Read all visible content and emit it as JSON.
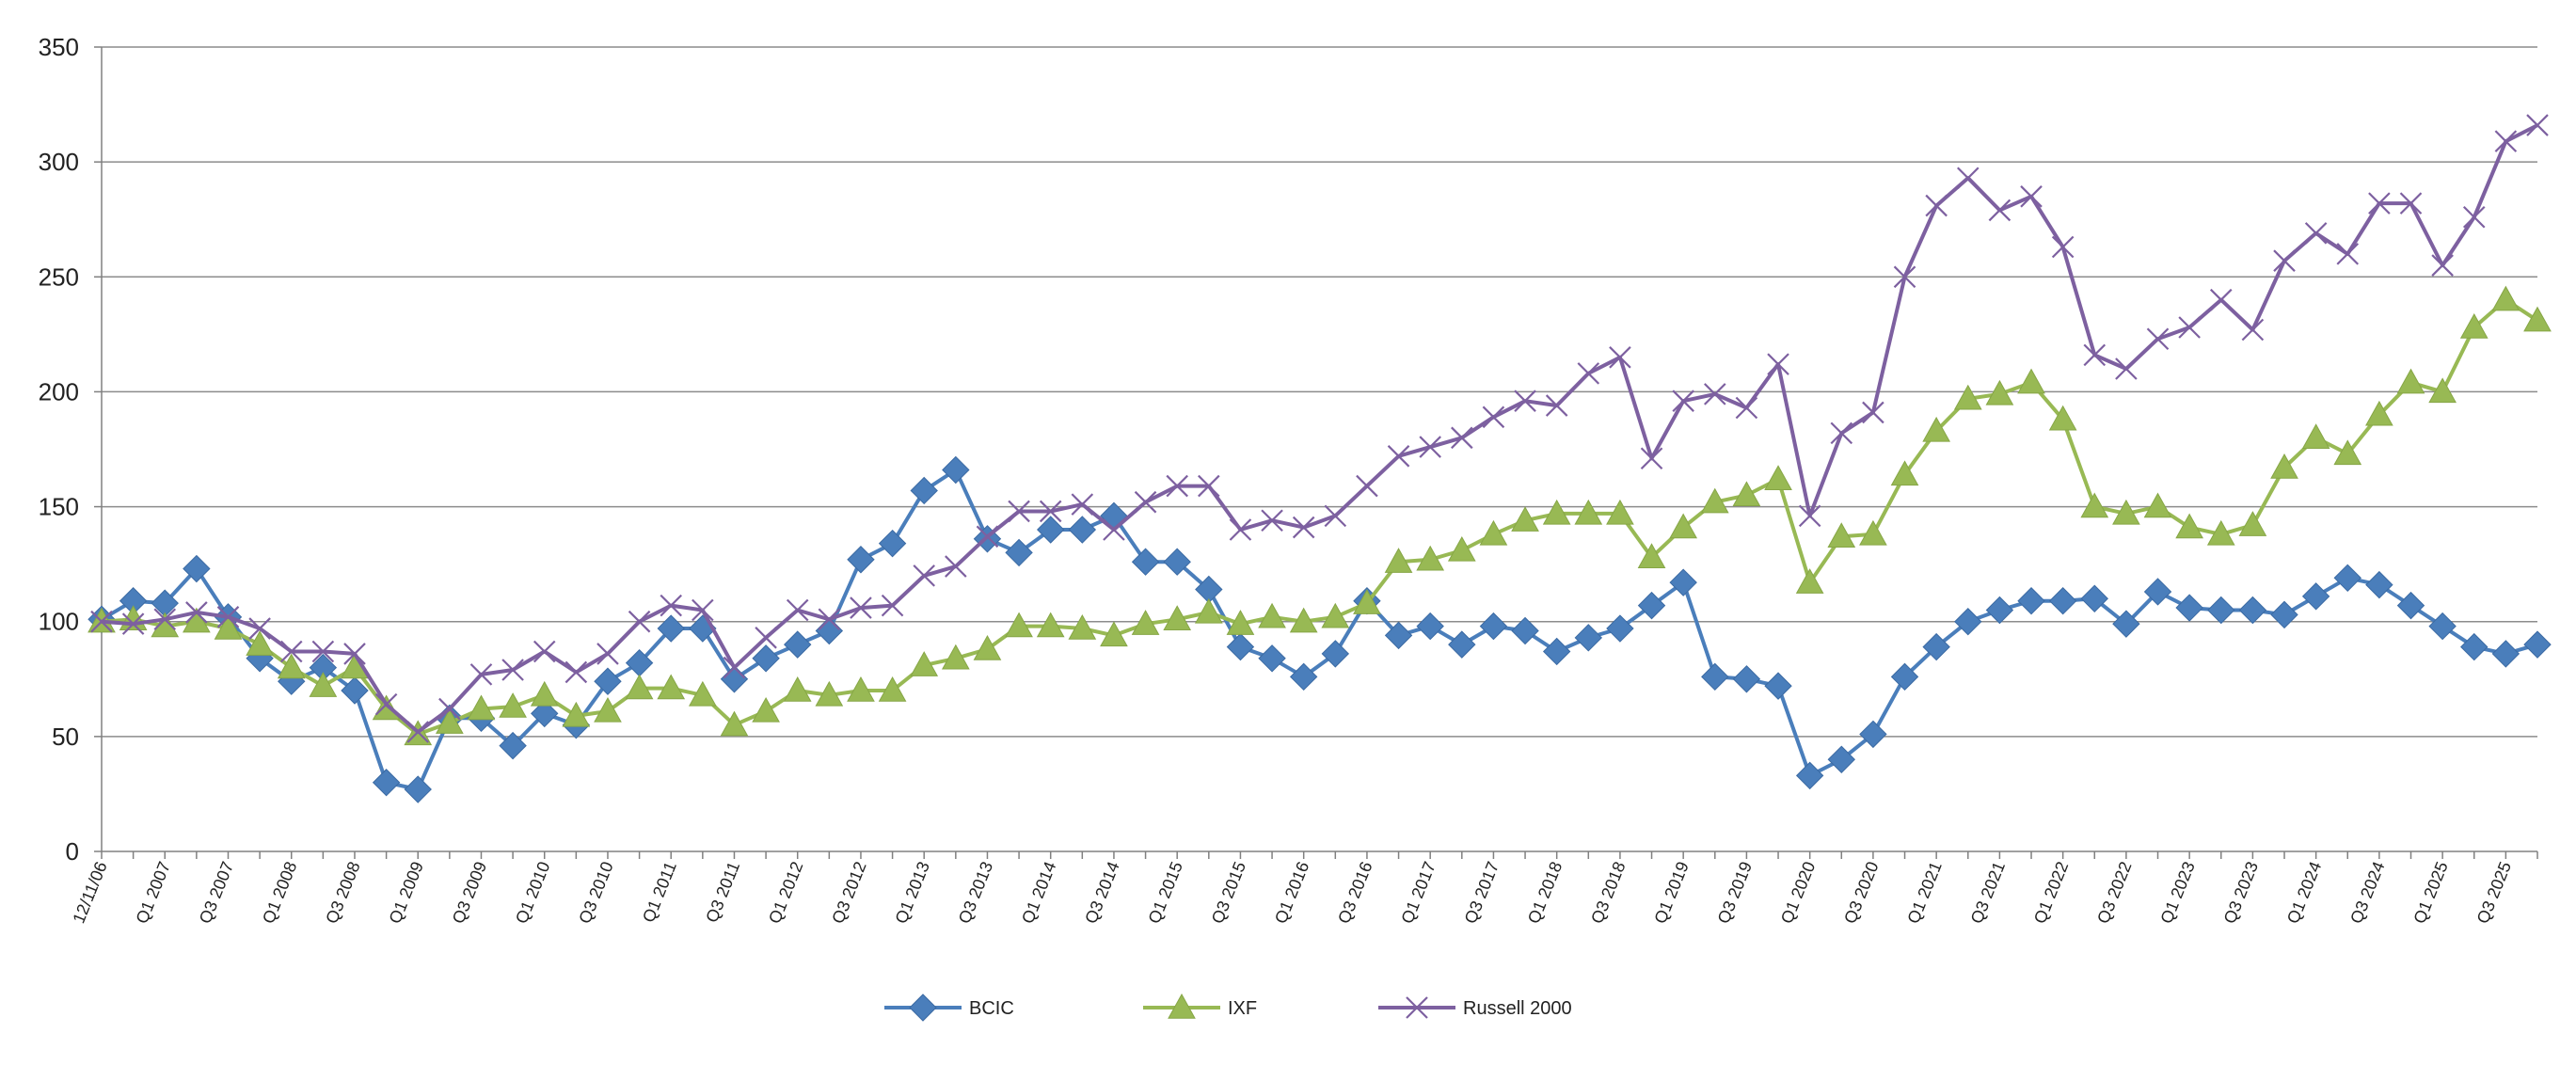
{
  "chart_data": {
    "type": "line",
    "title": "",
    "xlabel": "",
    "ylabel": "",
    "ylim": [
      0,
      350
    ],
    "yticks": [
      0,
      50,
      100,
      150,
      200,
      250,
      300,
      350
    ],
    "grid": true,
    "legend_position": "bottom-center",
    "x_tick_labels": [
      "12/11/06",
      "Q1 2007",
      "Q3 2007",
      "Q1 2008",
      "Q3 2008",
      "Q1 2009",
      "Q3 2009",
      "Q1 2010",
      "Q3 2010",
      "Q1 2011",
      "Q3 2011",
      "Q1 2012",
      "Q3 2012",
      "Q1 2013",
      "Q3 2013",
      "Q1 2014",
      "Q3 2014",
      "Q1 2015",
      "Q3 2015",
      "Q1 2016",
      "Q3 2016",
      "Q1 2017",
      "Q3 2017",
      "Q1 2018",
      "Q3 2018",
      "Q1 2019",
      "Q3 2019",
      "Q1 2020",
      "Q3 2020",
      "Q1 2021",
      "Q3 2021",
      "Q1 2022",
      "Q3 2022",
      "Q1 2023",
      "Q3 2023",
      "Q1 2024",
      "Q3 2024",
      "Q1 2025",
      "Q3 2025"
    ],
    "n_points": 78,
    "series": [
      {
        "name": "BCIC",
        "color": "#4A7EBB",
        "marker": "diamond",
        "values": [
          101,
          109,
          108,
          123,
          102,
          84,
          74,
          80,
          70,
          30,
          27,
          58,
          58,
          46,
          60,
          55,
          74,
          82,
          97,
          97,
          75,
          84,
          90,
          96,
          127,
          134,
          157,
          166,
          136,
          130,
          140,
          140,
          146,
          126,
          126,
          114,
          89,
          84,
          76,
          86,
          109,
          94,
          98,
          90,
          98,
          96,
          87,
          93,
          97,
          107,
          117,
          76,
          75,
          72,
          33,
          40,
          51,
          76,
          89,
          100,
          105,
          109,
          109,
          110,
          99,
          113,
          106,
          105,
          105,
          103,
          111,
          119,
          116,
          107,
          98,
          89,
          86,
          90
        ]
      },
      {
        "name": "IXF",
        "color": "#98B954",
        "marker": "triangle",
        "values": [
          100,
          101,
          98,
          100,
          97,
          90,
          80,
          72,
          80,
          62,
          51,
          56,
          62,
          63,
          68,
          59,
          61,
          71,
          71,
          68,
          55,
          61,
          70,
          68,
          70,
          70,
          81,
          84,
          88,
          98,
          98,
          97,
          94,
          99,
          101,
          104,
          99,
          102,
          100,
          102,
          108,
          126,
          127,
          131,
          138,
          144,
          147,
          147,
          147,
          128,
          141,
          152,
          155,
          162,
          117,
          137,
          138,
          164,
          183,
          197,
          199,
          204,
          188,
          150,
          147,
          150,
          141,
          138,
          142,
          167,
          180,
          173,
          190,
          204,
          200,
          228,
          240,
          231
        ]
      },
      {
        "name": "Russell 2000",
        "color": "#7D60A0",
        "marker": "x",
        "values": [
          100,
          99,
          101,
          104,
          102,
          97,
          87,
          87,
          86,
          64,
          52,
          62,
          77,
          79,
          87,
          78,
          86,
          100,
          107,
          105,
          80,
          93,
          105,
          101,
          106,
          107,
          120,
          124,
          137,
          148,
          148,
          151,
          140,
          152,
          159,
          159,
          140,
          144,
          141,
          146,
          159,
          172,
          176,
          180,
          189,
          196,
          194,
          208,
          215,
          171,
          196,
          199,
          193,
          212,
          146,
          182,
          191,
          250,
          281,
          293,
          279,
          285,
          263,
          216,
          210,
          223,
          228,
          240,
          227,
          257,
          269,
          260,
          282,
          282,
          255,
          276,
          309,
          316
        ]
      }
    ]
  }
}
